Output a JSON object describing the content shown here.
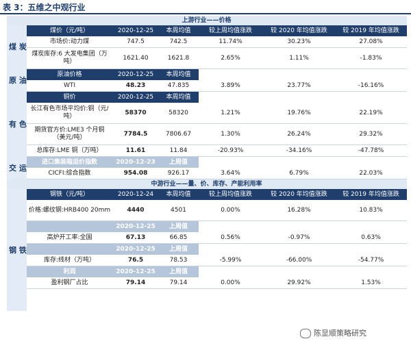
{
  "title": "表 3：五维之中观行业",
  "upstream": {
    "header": "上游行业——价格",
    "coal": {
      "section": "煤 炭",
      "head": [
        "煤价（元/吨）",
        "2020-12-25",
        "本周均值",
        "较上周均值涨跌",
        "较 2020 年均值涨跌",
        "较 2019 年均值涨跌"
      ],
      "rows": [
        [
          "市场价:动力煤",
          "747.5",
          "742.5",
          "11.74%",
          "30.23%",
          "27.08%"
        ],
        [
          "煤炭库存:6 大发电集团（万吨）",
          "1621.40",
          "1621.8",
          "2.65%",
          "1.11%",
          "-1.83%"
        ]
      ]
    },
    "oil": {
      "section": "原 油",
      "head": [
        "原油价格",
        "2020-12-25",
        "本周均值"
      ],
      "rows": [
        [
          "WTI",
          "48.23",
          "47.835",
          "3.89%",
          "23.77%",
          "-16.16%"
        ]
      ]
    },
    "metal": {
      "section": "有 色",
      "head": [
        "铜价",
        "2020-12-25",
        "本周均值"
      ],
      "rows": [
        [
          "长江有色市场平均价:铜（元/吨）",
          "58370",
          "58320",
          "1.21%",
          "19.76%",
          "22.19%"
        ],
        [
          "期货官方价:LME3 个月铜（美元/吨）",
          "7784.5",
          "7806.67",
          "1.30%",
          "26.24%",
          "29.32%"
        ],
        [
          "总库存:LME 铜（万吨）",
          "11.61",
          "11.84",
          "-20.93%",
          "-34.16%",
          "-47.78%"
        ]
      ]
    },
    "transport": {
      "section": "交 运",
      "head": [
        "进口集装箱运价指数",
        "2020-12-23",
        "上周值"
      ],
      "rows": [
        [
          "CICFI:综合指数",
          "954.08",
          "926.17",
          "3.64%",
          "6.79%",
          "22.03%"
        ]
      ]
    }
  },
  "midstream": {
    "header": "中游行业——量、价、库存、产能利用率",
    "steel": {
      "section": "钢 铁",
      "head": [
        "钢铁（元/吨）",
        "2020-12-24",
        "本周均值",
        "较上周均值涨跌",
        "较 2020 年均值涨跌",
        "较 2019 年均值涨跌"
      ],
      "rows": [
        [
          "价格:螺纹钢:HRB400 20mm",
          "4440",
          "4501",
          "0.00%",
          "16.28%",
          "10.83%"
        ],
        [
          "高炉开工率:全国",
          "67.13",
          "66.85",
          "0.56%",
          "-0.97%",
          "0.63%"
        ],
        [
          "库存:线材（万吨）",
          "76.5",
          "78.53",
          "-5.99%",
          "-66.00%",
          "-54.77%"
        ],
        [
          "盈利钢厂占比",
          "79.14",
          "79.14",
          "0.00%",
          "29.92%",
          "1.53%"
        ]
      ],
      "subheads": [
        [
          "",
          "2020-12-25",
          "上周值"
        ],
        [
          "",
          "2020-12-25",
          "上周值"
        ],
        [
          "利润",
          "2020-12-25",
          "上周值"
        ]
      ]
    }
  },
  "watermark": "陈显顺策略研究"
}
